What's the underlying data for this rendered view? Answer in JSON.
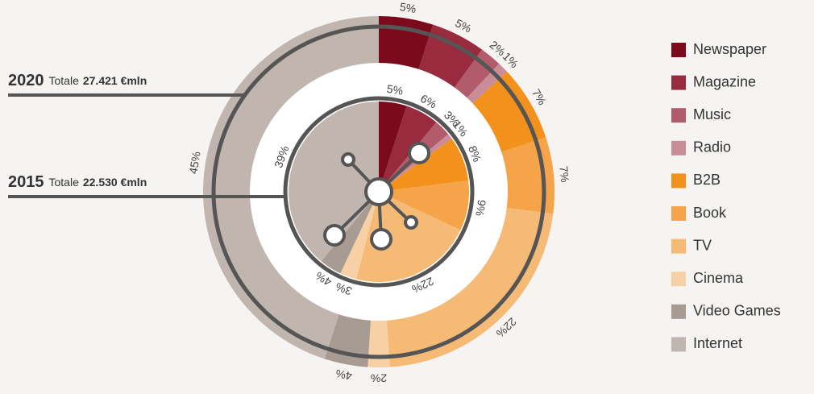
{
  "chart_data": {
    "type": "donut",
    "categories": [
      "Newspaper",
      "Magazine",
      "Music",
      "Radio",
      "B2B",
      "Book",
      "TV",
      "Cinema",
      "Video Games",
      "Internet"
    ],
    "colors": [
      "#7a0a1c",
      "#982b3e",
      "#b25b6b",
      "#c98d98",
      "#f2921c",
      "#f5a449",
      "#f6ba77",
      "#f7d0a6",
      "#a89b91",
      "#c1b6af"
    ],
    "series": [
      {
        "name": "2020",
        "total_label": "Totale",
        "total": "27.421 €mln",
        "values": [
          5,
          5,
          2,
          1,
          7,
          7,
          22,
          2,
          4,
          45
        ],
        "value_labels": [
          "5%",
          "5%",
          "2%",
          "1%",
          "7%",
          "7%",
          "22%",
          "2%",
          "4%",
          "45%"
        ]
      },
      {
        "name": "2015",
        "total_label": "Totale",
        "total": "22.530 €mln",
        "values": [
          5,
          6,
          3,
          1,
          8,
          9,
          22,
          3,
          4,
          39
        ],
        "value_labels": [
          "5%",
          "6%",
          "3%",
          "1%",
          "8%",
          "9%",
          "22%",
          "3%",
          "4%",
          "39%"
        ]
      }
    ]
  }
}
